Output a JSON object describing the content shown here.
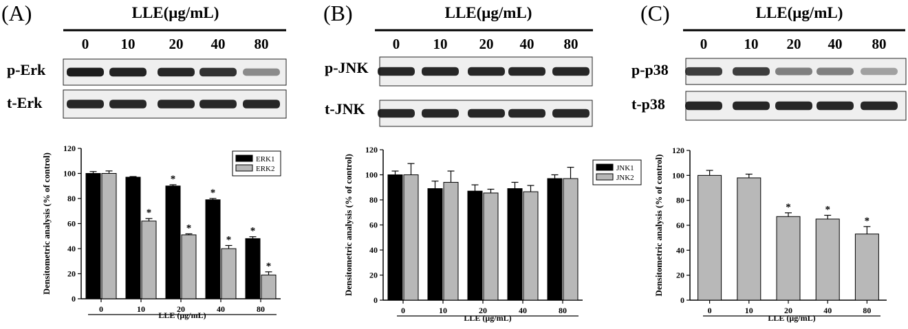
{
  "panels": [
    {
      "id": "A",
      "letter": "(A)",
      "header": "LLE(μg/mL)",
      "lanes": [
        "0",
        "10",
        "20",
        "40",
        "80"
      ],
      "blots": [
        "p-Erk",
        "t-Erk"
      ],
      "band_intensity": [
        [
          0.95,
          0.92,
          0.9,
          0.85,
          0.45
        ],
        [
          0.9,
          0.9,
          0.9,
          0.9,
          0.9
        ]
      ],
      "chart_data": {
        "type": "bar",
        "categories": [
          "0",
          "10",
          "20",
          "40",
          "80"
        ],
        "series": [
          {
            "name": "ERK1",
            "color": "#000000",
            "values": [
              100,
              97,
              90,
              79,
              48
            ],
            "errors": [
              1.5,
              0.5,
              1.0,
              1.0,
              1.5
            ],
            "sig": [
              false,
              false,
              true,
              true,
              true
            ]
          },
          {
            "name": "ERK2",
            "color": "#b8b8b8",
            "values": [
              100,
              62,
              51,
              40,
              19
            ],
            "errors": [
              2.0,
              2.0,
              0.8,
              2.5,
              2.5
            ],
            "sig": [
              false,
              true,
              true,
              true,
              true
            ]
          }
        ],
        "ylabel": "Densitometric analysis (% of control)",
        "xlabel": "LLE (μg/mL)",
        "ylim": [
          0,
          120
        ],
        "yticks": [
          "0",
          "20",
          "40",
          "60",
          "80",
          "100",
          "120"
        ],
        "legend": "top-right",
        "sig_marker": "*"
      }
    },
    {
      "id": "B",
      "letter": "(B)",
      "header": "LLE(μg/mL)",
      "lanes": [
        "0",
        "10",
        "20",
        "40",
        "80"
      ],
      "blots": [
        "p-JNK",
        "t-JNK"
      ],
      "band_intensity": [
        [
          0.9,
          0.9,
          0.9,
          0.9,
          0.9
        ],
        [
          0.9,
          0.9,
          0.9,
          0.9,
          0.9
        ]
      ],
      "chart_data": {
        "type": "bar",
        "categories": [
          "0",
          "10",
          "20",
          "40",
          "80"
        ],
        "series": [
          {
            "name": "JNK1",
            "color": "#000000",
            "values": [
              100,
              89,
              87,
              89,
              97
            ],
            "errors": [
              3,
              6,
              5,
              5,
              3
            ],
            "sig": [
              false,
              false,
              false,
              false,
              false
            ]
          },
          {
            "name": "JNK2",
            "color": "#b8b8b8",
            "values": [
              100,
              94,
              85.5,
              86.5,
              97
            ],
            "errors": [
              9,
              9,
              3,
              5,
              9
            ],
            "sig": [
              false,
              false,
              false,
              false,
              false
            ]
          }
        ],
        "ylabel": "Densitometric analysis (% of control)",
        "xlabel": "LLE (μg/mL)",
        "ylim": [
          0,
          120
        ],
        "yticks": [
          "0",
          "20",
          "40",
          "60",
          "80",
          "100",
          "120"
        ],
        "legend": "top-right",
        "sig_marker": "*"
      }
    },
    {
      "id": "C",
      "letter": "(C)",
      "header": "LLE(μg/mL)",
      "lanes": [
        "0",
        "10",
        "20",
        "40",
        "80"
      ],
      "blots": [
        "p-p38",
        "t-p38"
      ],
      "band_intensity": [
        [
          0.8,
          0.8,
          0.5,
          0.5,
          0.35
        ],
        [
          0.9,
          0.9,
          0.9,
          0.9,
          0.9
        ]
      ],
      "chart_data": {
        "type": "bar",
        "categories": [
          "0",
          "10",
          "20",
          "40",
          "80"
        ],
        "series": [
          {
            "color": "#b8b8b8",
            "values": [
              100,
              98,
              67,
              65,
              53
            ],
            "errors": [
              4,
              3,
              3,
              3,
              6
            ],
            "sig": [
              false,
              false,
              true,
              true,
              true
            ]
          }
        ],
        "ylabel": "Densitometric analysis (% of control)",
        "xlabel": "LLE (μg/mL)",
        "ylim": [
          0,
          120
        ],
        "yticks": [
          "0",
          "20",
          "40",
          "60",
          "80",
          "100",
          "120"
        ],
        "sig_marker": "*"
      }
    }
  ]
}
